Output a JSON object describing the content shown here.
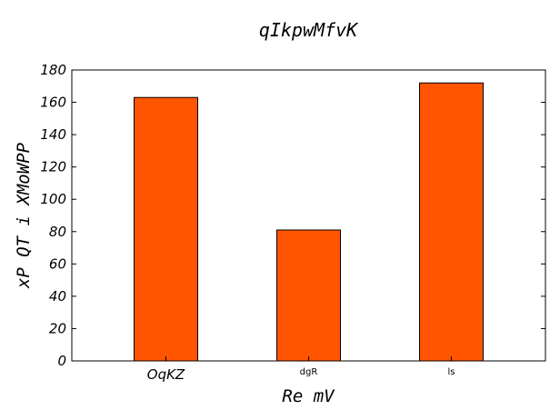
{
  "chart_data": {
    "type": "bar",
    "title": "qIkpwMfvK",
    "xlabel": "Re mV",
    "ylabel": "xP QT i XMoWPP",
    "categories": [
      "OqKZ",
      "dgR",
      "ls"
    ],
    "values": [
      163,
      81,
      172
    ],
    "ylim": [
      0,
      180
    ],
    "yticks": [
      "0",
      "20",
      "40",
      "60",
      "80",
      "100",
      "120",
      "140",
      "160",
      "180"
    ],
    "bar_color": "#ff5500",
    "edge_color": "#000000",
    "grid": false,
    "legend": "none"
  }
}
